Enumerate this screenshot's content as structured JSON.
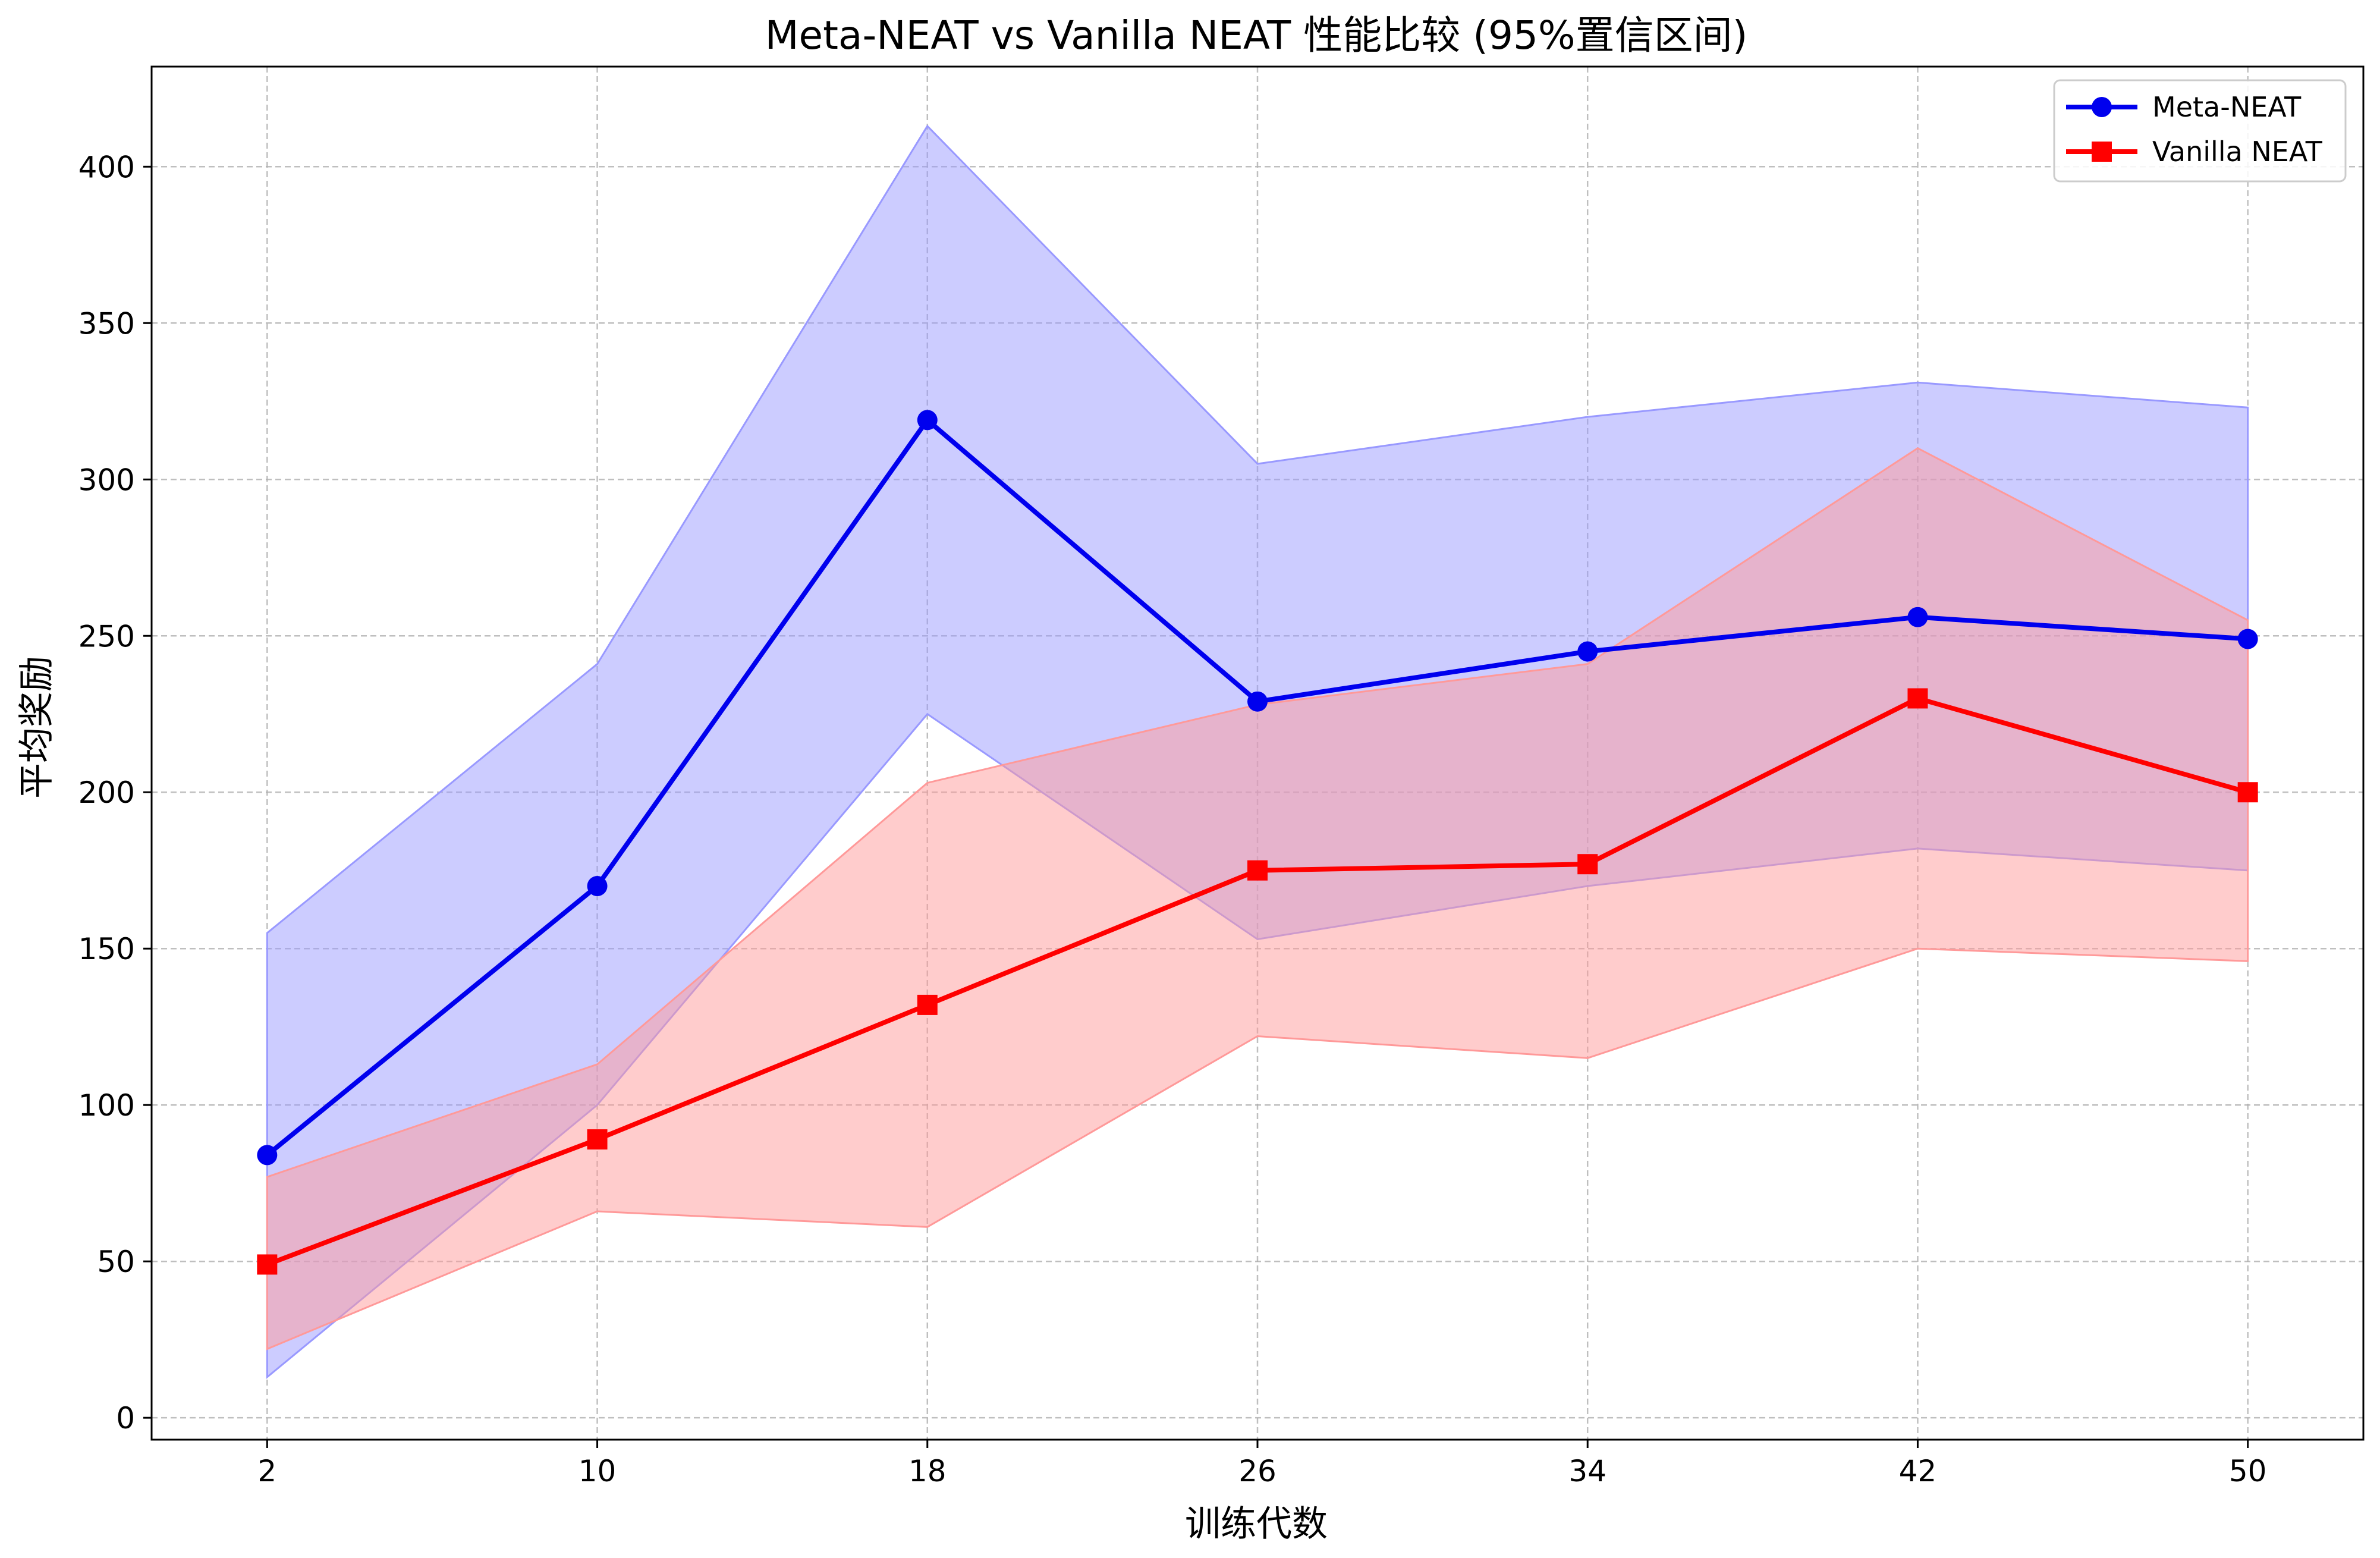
{
  "chart_data": {
    "type": "line",
    "title": "Meta-NEAT vs Vanilla NEAT 性能比较 (95%置信区间)",
    "xlabel": "训练代数",
    "ylabel": "平均奖励",
    "x": [
      2,
      10,
      18,
      26,
      34,
      42,
      50
    ],
    "x_ticks": [
      "2",
      "10",
      "18",
      "26",
      "34",
      "42",
      "50"
    ],
    "y_ticks": [
      "0",
      "50",
      "100",
      "150",
      "200",
      "250",
      "300",
      "350",
      "400"
    ],
    "xlim": [
      -0.8,
      52.8
    ],
    "ylim": [
      -7,
      432
    ],
    "grid": true,
    "legend_position": "top-right",
    "series": [
      {
        "name": "Meta-NEAT",
        "color": "#0000ee",
        "band_color": "#9999ff",
        "marker": "circle",
        "values": [
          84,
          170,
          319,
          229,
          245,
          256,
          249
        ],
        "ci_lower": [
          13,
          100,
          225,
          153,
          170,
          182,
          175
        ],
        "ci_upper": [
          155,
          241,
          413,
          305,
          320,
          331,
          323
        ]
      },
      {
        "name": "Vanilla NEAT",
        "color": "#ff0000",
        "band_color": "#ff9999",
        "marker": "square",
        "values": [
          49,
          89,
          132,
          175,
          177,
          230,
          200
        ],
        "ci_lower": [
          22,
          66,
          61,
          122,
          115,
          150,
          146
        ],
        "ci_upper": [
          77,
          113,
          203,
          228,
          241,
          310,
          255
        ]
      }
    ]
  }
}
